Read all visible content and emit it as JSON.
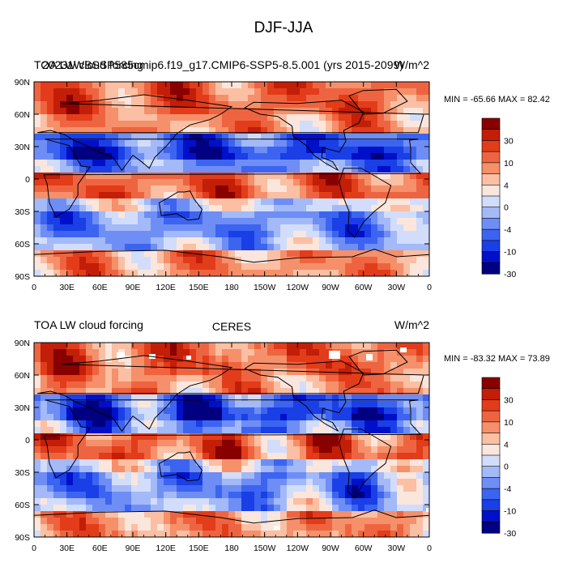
{
  "figure_title": "DJF-JJA",
  "colors": {
    "levels": [
      "#000080",
      "#0010c8",
      "#1a3fe6",
      "#3c64f0",
      "#6e8ef5",
      "#a3b9f8",
      "#d1ddfb",
      "#fbe6dd",
      "#fbbfa3",
      "#f5906a",
      "#ef6440",
      "#e23c1a",
      "#c21e08",
      "#880000"
    ],
    "land_outline": "#000000",
    "missing": "#ffffff"
  },
  "chart_data": [
    {
      "type": "heatmap",
      "id": "top",
      "title_left_a": "TOA LW cloud forcing",
      "title_left_b": "20231WBSSP585cmip6.f19_g17.CMIP6-SSP5-8.5.001 (yrs 2015-2099)",
      "title_right": "W/m^2",
      "stats": "MIN = -65.66 MAX =  82.42",
      "x_ticks": [
        "0",
        "30E",
        "60E",
        "90E",
        "120E",
        "150E",
        "180",
        "150W",
        "120W",
        "90W",
        "60W",
        "30W",
        "0"
      ],
      "y_ticks": [
        "90N",
        "60N",
        "30N",
        "0",
        "30S",
        "60S",
        "90S"
      ],
      "colorbar_labels": [
        "30",
        "10",
        "4",
        "0",
        "-4",
        "-10",
        "-30"
      ],
      "value_range": [
        -65.66,
        82.42
      ]
    },
    {
      "type": "heatmap",
      "id": "bottom",
      "title_left": "TOA LW cloud forcing",
      "title_center": "CERES",
      "title_right": "W/m^2",
      "stats": "MIN = -83.32 MAX =  73.89",
      "x_ticks": [
        "0",
        "30E",
        "60E",
        "90E",
        "120E",
        "150E",
        "180",
        "150W",
        "120W",
        "90W",
        "60W",
        "30W",
        "0"
      ],
      "y_ticks": [
        "90N",
        "60N",
        "30N",
        "0",
        "30S",
        "60S",
        "90S"
      ],
      "colorbar_labels": [
        "30",
        "10",
        "4",
        "0",
        "-4",
        "-10",
        "-30"
      ],
      "value_range": [
        -83.32,
        73.89
      ]
    }
  ]
}
